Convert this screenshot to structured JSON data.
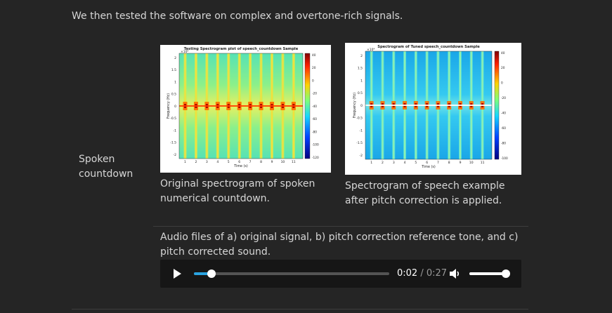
{
  "intro_text": "We then tested the software on complex and overtone-rich signals.",
  "row_label": "Spoken countdown",
  "figures": [
    {
      "title": "Testing Spectrogram plot of speech_countdown Sample",
      "xlabel": "Time (s)",
      "ylabel": "Frequency (Hz)",
      "exponent": "×10⁴",
      "y_ticks": [
        "2",
        "1.5",
        "1",
        "0.5",
        "0",
        "-0.5",
        "-1",
        "-1.5",
        "-2"
      ],
      "x_ticks": [
        "1",
        "2",
        "3",
        "4",
        "5",
        "6",
        "7",
        "8",
        "9",
        "10",
        "11"
      ],
      "colorbar_ticks": [
        "40",
        "20",
        "0",
        "-20",
        "-40",
        "-60",
        "-80",
        "-100",
        "-120"
      ],
      "caption": "Original spectrogram of spoken numerical countdown."
    },
    {
      "title": "Spectrogram of Tuned speech_countdown Sample",
      "xlabel": "Time (s)",
      "ylabel": "Frequency (Hz)",
      "exponent": "×10⁴",
      "y_ticks": [
        "2",
        "1.5",
        "1",
        "0.5",
        "0",
        "-0.5",
        "-1",
        "-1.5",
        "-2"
      ],
      "x_ticks": [
        "1",
        "2",
        "3",
        "4",
        "5",
        "6",
        "7",
        "8",
        "9",
        "10",
        "11"
      ],
      "colorbar_ticks": [
        "40",
        "20",
        "0",
        "-20",
        "-40",
        "-60",
        "-80",
        "-100"
      ],
      "caption": "Spectrogram of speech example after pitch correction is applied."
    }
  ],
  "audio": {
    "caption": "Audio files of a) original signal, b) pitch correction reference tone, and c) pitch corrected sound.",
    "current_time": "0:02",
    "separator": "/",
    "duration": "0:27",
    "progress_fraction": 0.09,
    "volume_fraction": 0.9,
    "play_icon": "play-icon",
    "volume_icon": "volume-icon",
    "accent_color": "#2aa3e0"
  }
}
